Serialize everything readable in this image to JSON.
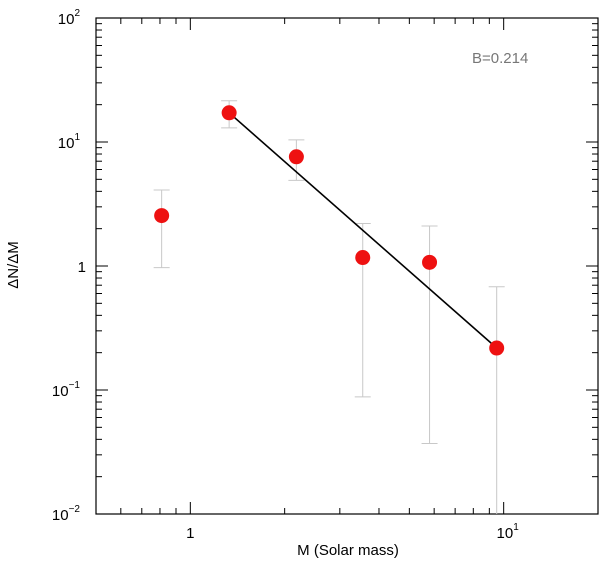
{
  "chart_data": {
    "type": "scatter",
    "title": "",
    "xlabel": "M (Solar mass)",
    "ylabel": "ΔN/ΔM",
    "x_scale": "log",
    "y_scale": "log",
    "xlim": [
      0.5,
      20
    ],
    "ylim": [
      0.01,
      100
    ],
    "x_ticks": [
      {
        "value": 1,
        "base": "1",
        "exp": ""
      },
      {
        "value": 10,
        "base": "10",
        "exp": "1"
      }
    ],
    "y_ticks": [
      {
        "value": 0.01,
        "base": "10",
        "exp": "−2"
      },
      {
        "value": 0.1,
        "base": "10",
        "exp": "−1"
      },
      {
        "value": 1,
        "base": "1",
        "exp": ""
      },
      {
        "value": 10,
        "base": "10",
        "exp": "1"
      },
      {
        "value": 100,
        "base": "10",
        "exp": "2"
      }
    ],
    "grid": false,
    "annotation": "B=0.214",
    "points": [
      {
        "x": 0.81,
        "y": 2.55,
        "err_low": 0.97,
        "err_high": 4.1
      },
      {
        "x": 1.33,
        "y": 17.2,
        "err_low": 13.0,
        "err_high": 21.5
      },
      {
        "x": 2.18,
        "y": 7.6,
        "err_low": 4.9,
        "err_high": 10.4
      },
      {
        "x": 3.55,
        "y": 1.17,
        "err_low": 0.088,
        "err_high": 2.2
      },
      {
        "x": 5.8,
        "y": 1.07,
        "err_low": 0.037,
        "err_high": 2.1
      },
      {
        "x": 9.5,
        "y": 0.218,
        "err_low": 0.0085,
        "err_high": 0.68
      }
    ],
    "fit_line": {
      "x": [
        1.33,
        9.5
      ],
      "y": [
        17.2,
        0.218
      ]
    },
    "colors": {
      "points": "#ee1111",
      "errorbars": "#c8c8c8",
      "fit": "#000000",
      "axes": "#000000"
    }
  }
}
